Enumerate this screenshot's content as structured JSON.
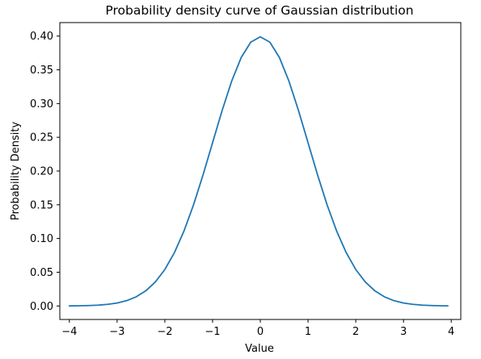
{
  "chart_data": {
    "type": "line",
    "title": "Probability density curve of Gaussian distribution",
    "xlabel": "Value",
    "ylabel": "Probability Density",
    "xlim": [
      -4.2,
      4.2
    ],
    "ylim": [
      -0.02,
      0.42
    ],
    "grid": false,
    "x_ticks": [
      -4,
      -3,
      -2,
      -1,
      0,
      1,
      2,
      3,
      4
    ],
    "x_tick_labels": [
      "−4",
      "−3",
      "−2",
      "−1",
      "0",
      "1",
      "2",
      "3",
      "4"
    ],
    "y_ticks": [
      0.0,
      0.05,
      0.1,
      0.15,
      0.2,
      0.25,
      0.3,
      0.35,
      0.4
    ],
    "y_tick_labels": [
      "0.00",
      "0.05",
      "0.10",
      "0.15",
      "0.20",
      "0.25",
      "0.30",
      "0.35",
      "0.40"
    ],
    "series": [
      {
        "color": "#1f77b4",
        "x": [
          -4.0,
          -3.8,
          -3.6,
          -3.4,
          -3.2,
          -3.0,
          -2.8,
          -2.6,
          -2.4,
          -2.2,
          -2.0,
          -1.8,
          -1.6,
          -1.4,
          -1.2,
          -1.0,
          -0.8,
          -0.6,
          -0.4,
          -0.2,
          0.0,
          0.2,
          0.4,
          0.6,
          0.8,
          1.0,
          1.2,
          1.4,
          1.6,
          1.8,
          2.0,
          2.2,
          2.4,
          2.6,
          2.8,
          3.0,
          3.2,
          3.4,
          3.6,
          3.8,
          3.93
        ],
        "y": [
          0.0001,
          0.0003,
          0.0006,
          0.0012,
          0.0024,
          0.0044,
          0.0079,
          0.0136,
          0.0224,
          0.0355,
          0.054,
          0.079,
          0.1109,
          0.1497,
          0.1942,
          0.242,
          0.2897,
          0.3332,
          0.3683,
          0.391,
          0.3989,
          0.391,
          0.3683,
          0.3332,
          0.2897,
          0.242,
          0.1942,
          0.1497,
          0.1109,
          0.079,
          0.054,
          0.0355,
          0.0224,
          0.0136,
          0.0079,
          0.0044,
          0.0024,
          0.0012,
          0.0006,
          0.0003,
          0.0002
        ]
      }
    ]
  }
}
